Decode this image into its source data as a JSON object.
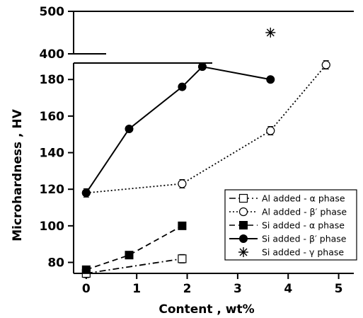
{
  "chart_data": {
    "type": "line",
    "xlabel": "Content , wt%",
    "ylabel": "Microhardness , HV",
    "x_ticks": [
      "0",
      "1",
      "2",
      "3",
      "4",
      "5"
    ],
    "y_ticks_lower": [
      "80",
      "100",
      "120",
      "140",
      "160",
      "180"
    ],
    "y_ticks_upper": [
      "400",
      "500"
    ],
    "xlim": [
      -0.25,
      5.3
    ],
    "ylim_lower": [
      74,
      189
    ],
    "ylim_upper": [
      400,
      500
    ],
    "axis_break": true,
    "legend_position": "bottom-right",
    "series": [
      {
        "name": "Al added - α phase",
        "x": [
          0,
          1.9
        ],
        "y": [
          74,
          82
        ],
        "line_style": "dash-dot",
        "marker": "open-square",
        "error_bars": true
      },
      {
        "name": "Al added - β′ phase",
        "x": [
          0,
          1.9,
          3.65,
          4.75
        ],
        "y": [
          118,
          123,
          152,
          188
        ],
        "line_style": "dotted",
        "marker": "open-circle",
        "error_bars": true
      },
      {
        "name": "Si added - α phase",
        "x": [
          0,
          0.85,
          1.9
        ],
        "y": [
          76,
          84,
          100
        ],
        "line_style": "dashed",
        "marker": "filled-square",
        "error_bars": false
      },
      {
        "name": "Si added - β′ phase",
        "x": [
          0,
          0.85,
          1.9,
          2.3,
          3.65
        ],
        "y": [
          118,
          153,
          176,
          187,
          180
        ],
        "line_style": "solid",
        "marker": "filled-circle",
        "error_bars": false
      },
      {
        "name": "Si added - γ phase",
        "x": [
          3.65
        ],
        "y": [
          450
        ],
        "line_style": "none",
        "marker": "asterisk",
        "error_bars": false
      }
    ]
  }
}
